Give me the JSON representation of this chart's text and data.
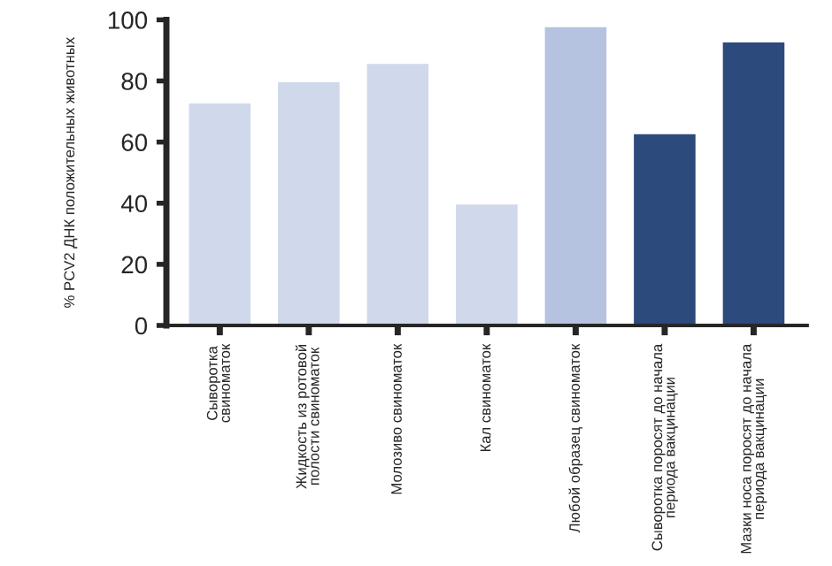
{
  "chart_data": {
    "type": "bar",
    "ylabel": "% PCV2 ДНК положительных животных",
    "categories": [
      "Сыворотка\nсвиноматок",
      "Жидкость из ротовой\nполости свиноматок",
      "Молозиво свиноматок",
      "Кал свиноматок",
      "Любой образец свиноматок",
      "Сыворотка поросят до начала\nпериода вакцинации",
      "Мазки носа поросят до начала\nпериода вакцинации"
    ],
    "values": [
      73,
      80,
      86,
      40,
      98,
      63,
      93
    ],
    "colors": [
      "#d0d9ec",
      "#d0d9ec",
      "#d0d9ec",
      "#d0d9ec",
      "#b5c3e0",
      "#2c4a7c",
      "#2c4a7c"
    ],
    "ylim": [
      0,
      100
    ],
    "yticks": [
      0,
      20,
      40,
      60,
      80,
      100
    ],
    "grid": false
  }
}
